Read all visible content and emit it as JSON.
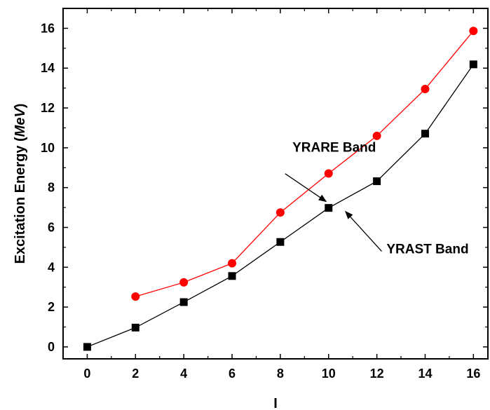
{
  "chart_data": {
    "type": "line",
    "xlabel": "I",
    "ylabel_prefix": "Excitation Energy (",
    "ylabel_unit": "MeV",
    "ylabel_suffix": ")",
    "xlim": [
      -1,
      16.6
    ],
    "ylim": [
      -0.6,
      17.0
    ],
    "xticks": [
      0,
      2,
      4,
      6,
      8,
      10,
      12,
      14,
      16
    ],
    "yticks": [
      0,
      2,
      4,
      6,
      8,
      10,
      12,
      14,
      16
    ],
    "grid": false,
    "series": [
      {
        "name": "YRAST Band",
        "color": "#000000",
        "marker": "square",
        "x": [
          0,
          2,
          4,
          6,
          8,
          10,
          12,
          14,
          16
        ],
        "y": [
          0.0,
          0.97,
          2.25,
          3.56,
          5.27,
          6.98,
          8.32,
          10.71,
          14.19
        ]
      },
      {
        "name": "YRARE Band",
        "color": "#ff0000",
        "marker": "circle",
        "x": [
          2,
          4,
          6,
          8,
          10,
          12,
          14,
          16
        ],
        "y": [
          2.53,
          3.24,
          4.2,
          6.75,
          8.71,
          10.6,
          12.95,
          15.87
        ]
      }
    ],
    "annotations": [
      {
        "text": "YRARE Band",
        "arrow_x": 9.9,
        "arrow_y": 7.3,
        "arrow_from_x": 8.2,
        "arrow_from_y": 8.7,
        "text_x": 8.5,
        "text_y": 9.8
      },
      {
        "text": "YRAST Band",
        "arrow_x": 10.7,
        "arrow_y": 6.8,
        "arrow_from_x": 12.2,
        "arrow_from_y": 4.8,
        "text_x": 12.4,
        "text_y": 4.7
      }
    ]
  }
}
